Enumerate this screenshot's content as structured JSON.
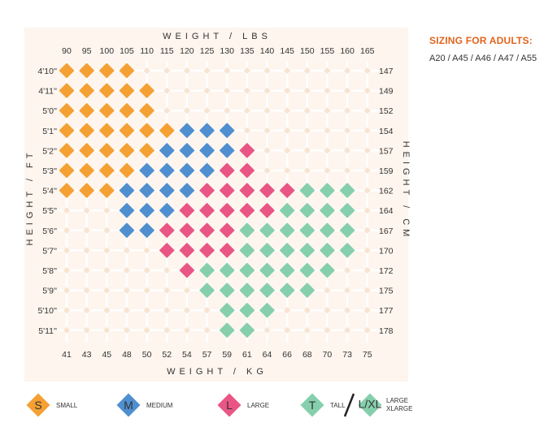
{
  "sidebar": {
    "title": "SIZING FOR ADULTS:",
    "models": "A20 / A45 / A46 / A47 / A55"
  },
  "colors": {
    "S": "#f5a033",
    "M": "#4f8fd0",
    "L": "#e95584",
    "T": "#86cfac",
    "background": "#fdf5ee",
    "empty": "#f8e3d0"
  },
  "chart_data": {
    "type": "heatmap",
    "axes": {
      "top_title": "WEIGHT / LBS",
      "bottom_title": "WEIGHT / KG",
      "left_title": "HEIGHT / FT",
      "right_title": "HEIGHT / CM"
    },
    "weight_lbs": [
      "90",
      "95",
      "100",
      "105",
      "110",
      "115",
      "120",
      "125",
      "130",
      "135",
      "140",
      "145",
      "150",
      "155",
      "160",
      "165"
    ],
    "weight_kg": [
      "41",
      "43",
      "45",
      "48",
      "50",
      "52",
      "54",
      "57",
      "59",
      "61",
      "64",
      "66",
      "68",
      "70",
      "73",
      "75"
    ],
    "height_ft": [
      "4'10''",
      "4'11''",
      "5'0''",
      "5'1''",
      "5'2''",
      "5'3''",
      "5'4''",
      "5'5''",
      "5'6''",
      "5'7''",
      "5'8''",
      "5'9''",
      "5'10''",
      "5'11''"
    ],
    "height_cm": [
      "147",
      "149",
      "152",
      "154",
      "157",
      "159",
      "162",
      "164",
      "167",
      "170",
      "172",
      "175",
      "177",
      "178"
    ],
    "grid": [
      "SSSS............",
      "SSSSS...........",
      "SSSSS...........",
      "SSSSSSMMM.......",
      "SSSSSMMMML......",
      "SSSSMMMMLL......",
      "SSSMMMMLLLLLTTT.",
      "...MMMLLLLLTTTT.",
      "...MMLLLLTTTTTT.",
      ".....LLLLTTTTTT.",
      "......LTTTTTTT..",
      ".......TTTTTT...",
      "........TTT.....",
      "........TT......"
    ],
    "legend": [
      {
        "code": "S",
        "letter": "S",
        "label": "SMALL"
      },
      {
        "code": "M",
        "letter": "M",
        "label": "MEDIUM"
      },
      {
        "code": "L",
        "letter": "L",
        "label": "LARGE"
      },
      {
        "code": "T",
        "letter": "T",
        "label": "TALL"
      },
      {
        "code": "T",
        "letter": "L/XL",
        "label": "LARGE XLARGE"
      }
    ]
  }
}
